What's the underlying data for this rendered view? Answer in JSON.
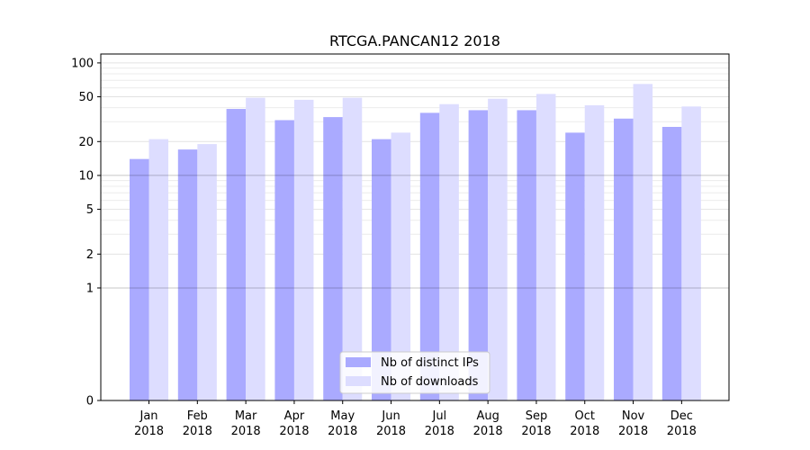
{
  "chart_data": {
    "type": "bar",
    "title": "RTCGA.PANCAN12 2018",
    "xlabel": "",
    "ylabel": "",
    "yscale": "symlog",
    "ylim": [
      0,
      120
    ],
    "yticks": [
      0,
      1,
      2,
      5,
      10,
      20,
      50,
      100
    ],
    "ytick_labels": [
      "0",
      "1",
      "2",
      "5",
      "10",
      "20",
      "50",
      "100"
    ],
    "categories": [
      [
        "Jan",
        "2018"
      ],
      [
        "Feb",
        "2018"
      ],
      [
        "Mar",
        "2018"
      ],
      [
        "Apr",
        "2018"
      ],
      [
        "May",
        "2018"
      ],
      [
        "Jun",
        "2018"
      ],
      [
        "Jul",
        "2018"
      ],
      [
        "Aug",
        "2018"
      ],
      [
        "Sep",
        "2018"
      ],
      [
        "Oct",
        "2018"
      ],
      [
        "Nov",
        "2018"
      ],
      [
        "Dec",
        "2018"
      ]
    ],
    "series": [
      {
        "name": "Nb of distinct IPs",
        "color": "#aaaaff",
        "values": [
          14,
          17,
          39,
          31,
          33,
          21,
          36,
          38,
          38,
          24,
          32,
          27
        ]
      },
      {
        "name": "Nb of downloads",
        "color": "#ddddff",
        "values": [
          21,
          19,
          49,
          47,
          49,
          24,
          43,
          48,
          53,
          42,
          65,
          41
        ]
      }
    ],
    "legend_position": "bottom-center",
    "grid": true
  }
}
